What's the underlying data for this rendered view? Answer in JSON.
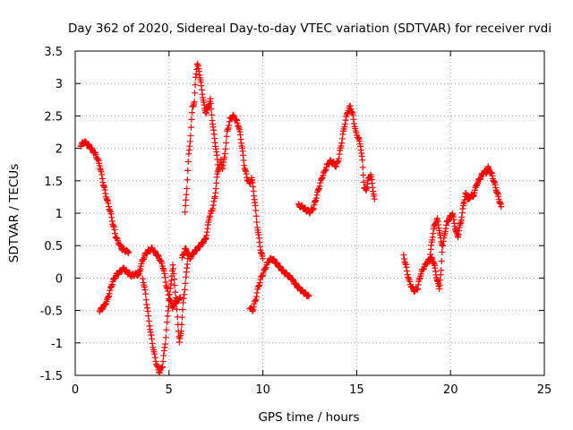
{
  "chart_data": {
    "type": "scatter",
    "title": "Day 362 of 2020, Sidereal Day-to-day VTEC variation (SDTVAR) for receiver rvdi",
    "xlabel": "GPS time / hours",
    "ylabel": "SDTVAR / TECUs",
    "xlim": [
      0,
      25
    ],
    "ylim": [
      -1.5,
      3.5
    ],
    "x_ticks": [
      "0",
      "5",
      "10",
      "15",
      "20",
      "25"
    ],
    "y_ticks": [
      "-1.5",
      "-1",
      "-0.5",
      "0",
      "0.5",
      "1",
      "1.5",
      "2",
      "2.5",
      "3",
      "3.5"
    ],
    "grid": true,
    "marker": "plus",
    "colors": {
      "series": "#ff0000",
      "grid": "#a0a0a0",
      "axis": "#000000"
    },
    "series": [
      {
        "points": [
          [
            0.3,
            2.05
          ],
          [
            0.5,
            2.1
          ],
          [
            0.7,
            2.05
          ],
          [
            0.9,
            1.98
          ],
          [
            1.1,
            1.9
          ],
          [
            1.3,
            1.75
          ],
          [
            1.5,
            1.45
          ],
          [
            1.7,
            1.2
          ],
          [
            1.85,
            1.05
          ],
          [
            2.0,
            0.85
          ],
          [
            2.15,
            0.65
          ],
          [
            2.3,
            0.55
          ],
          [
            2.5,
            0.45
          ],
          [
            2.7,
            0.42
          ],
          [
            2.85,
            0.4
          ]
        ]
      },
      {
        "points": [
          [
            1.3,
            -0.5
          ],
          [
            1.5,
            -0.45
          ],
          [
            1.7,
            -0.35
          ],
          [
            1.85,
            -0.2
          ],
          [
            2.0,
            -0.05
          ],
          [
            2.2,
            0.05
          ],
          [
            2.4,
            0.1
          ],
          [
            2.6,
            0.15
          ],
          [
            2.8,
            0.08
          ],
          [
            3.0,
            0.04
          ],
          [
            3.2,
            0.06
          ],
          [
            3.4,
            0.05
          ],
          [
            3.5,
            0.2
          ],
          [
            3.7,
            0.35
          ],
          [
            3.9,
            0.42
          ],
          [
            4.1,
            0.45
          ],
          [
            4.3,
            0.38
          ],
          [
            4.5,
            0.3
          ],
          [
            4.7,
            0.15
          ],
          [
            4.85,
            -0.1
          ],
          [
            5.0,
            -0.3
          ],
          [
            5.2,
            -0.45
          ],
          [
            5.4,
            -0.35
          ],
          [
            5.6,
            -0.3
          ]
        ]
      },
      {
        "points": [
          [
            3.6,
            0.0
          ],
          [
            3.75,
            -0.25
          ],
          [
            3.9,
            -0.6
          ],
          [
            4.05,
            -0.9
          ],
          [
            4.2,
            -1.15
          ],
          [
            4.35,
            -1.35
          ],
          [
            4.5,
            -1.45
          ],
          [
            4.65,
            -1.35
          ],
          [
            4.8,
            -1.0
          ],
          [
            4.95,
            -0.5
          ],
          [
            5.1,
            -0.1
          ],
          [
            5.2,
            0.2
          ],
          [
            5.3,
            -0.1
          ],
          [
            5.45,
            -0.6
          ],
          [
            5.55,
            -1.0
          ],
          [
            5.65,
            -0.8
          ],
          [
            5.75,
            -0.4
          ],
          [
            5.9,
            0.0
          ],
          [
            6.0,
            0.3
          ]
        ]
      },
      {
        "points": [
          [
            5.7,
            0.3
          ],
          [
            5.85,
            0.45
          ],
          [
            6.0,
            0.4
          ],
          [
            6.1,
            0.3
          ],
          [
            6.2,
            0.35
          ],
          [
            6.35,
            0.4
          ],
          [
            6.5,
            0.45
          ],
          [
            6.65,
            0.5
          ],
          [
            6.8,
            0.55
          ],
          [
            6.95,
            0.6
          ],
          [
            7.05,
            0.75
          ],
          [
            7.15,
            0.95
          ],
          [
            7.3,
            1.05
          ],
          [
            7.45,
            1.25
          ],
          [
            7.55,
            1.55
          ],
          [
            7.65,
            1.7
          ],
          [
            7.75,
            1.8
          ],
          [
            7.85,
            1.7
          ],
          [
            7.95,
            1.85
          ],
          [
            8.1,
            2.25
          ],
          [
            8.25,
            2.45
          ],
          [
            8.4,
            2.5
          ],
          [
            8.55,
            2.45
          ],
          [
            8.7,
            2.35
          ],
          [
            8.8,
            2.2
          ],
          [
            8.9,
            2.0
          ],
          [
            9.0,
            1.75
          ],
          [
            9.15,
            1.55
          ],
          [
            9.3,
            1.45
          ],
          [
            9.4,
            1.55
          ],
          [
            9.5,
            1.35
          ],
          [
            9.6,
            1.1
          ],
          [
            9.7,
            0.8
          ],
          [
            9.8,
            0.6
          ],
          [
            9.9,
            0.4
          ],
          [
            10.0,
            0.3
          ]
        ]
      },
      {
        "points": [
          [
            5.85,
            1.0
          ],
          [
            5.95,
            1.4
          ],
          [
            6.05,
            1.9
          ],
          [
            6.15,
            2.2
          ],
          [
            6.25,
            2.65
          ],
          [
            6.35,
            2.7
          ],
          [
            6.42,
            3.1
          ],
          [
            6.5,
            3.3
          ],
          [
            6.6,
            3.2
          ],
          [
            6.7,
            3.0
          ],
          [
            6.8,
            2.8
          ],
          [
            6.9,
            2.6
          ],
          [
            7.0,
            2.55
          ],
          [
            7.1,
            2.65
          ],
          [
            7.2,
            2.75
          ],
          [
            7.3,
            2.45
          ],
          [
            7.4,
            2.2
          ],
          [
            7.5,
            2.0
          ],
          [
            7.6,
            1.75
          ]
        ]
      },
      {
        "points": [
          [
            9.3,
            -0.45
          ],
          [
            9.45,
            -0.5
          ],
          [
            9.6,
            -0.35
          ],
          [
            9.75,
            -0.15
          ],
          [
            9.9,
            0.0
          ],
          [
            10.05,
            0.1
          ],
          [
            10.2,
            0.2
          ],
          [
            10.35,
            0.28
          ],
          [
            10.5,
            0.3
          ],
          [
            10.65,
            0.25
          ],
          [
            10.8,
            0.2
          ],
          [
            10.95,
            0.15
          ],
          [
            11.1,
            0.1
          ],
          [
            11.3,
            0.05
          ],
          [
            11.5,
            0.0
          ],
          [
            11.7,
            -0.08
          ],
          [
            11.9,
            -0.15
          ],
          [
            12.1,
            -0.2
          ],
          [
            12.3,
            -0.25
          ],
          [
            12.45,
            -0.28
          ]
        ]
      },
      {
        "points": [
          [
            11.9,
            1.12
          ],
          [
            12.1,
            1.1
          ],
          [
            12.3,
            1.05
          ],
          [
            12.5,
            1.02
          ],
          [
            12.7,
            1.08
          ],
          [
            12.85,
            1.25
          ],
          [
            13.0,
            1.4
          ],
          [
            13.15,
            1.55
          ],
          [
            13.3,
            1.65
          ],
          [
            13.45,
            1.75
          ],
          [
            13.6,
            1.8
          ],
          [
            13.75,
            1.78
          ],
          [
            13.9,
            1.72
          ],
          [
            14.05,
            1.85
          ],
          [
            14.2,
            2.1
          ],
          [
            14.35,
            2.35
          ],
          [
            14.5,
            2.55
          ],
          [
            14.65,
            2.65
          ],
          [
            14.8,
            2.5
          ],
          [
            14.95,
            2.25
          ],
          [
            15.1,
            2.15
          ],
          [
            15.2,
            2.05
          ],
          [
            15.3,
            1.8
          ],
          [
            15.4,
            1.4
          ],
          [
            15.5,
            1.35
          ],
          [
            15.6,
            1.5
          ],
          [
            15.75,
            1.6
          ],
          [
            15.85,
            1.4
          ],
          [
            15.95,
            1.22
          ]
        ]
      },
      {
        "points": [
          [
            17.5,
            0.35
          ],
          [
            17.65,
            0.15
          ],
          [
            17.8,
            -0.05
          ],
          [
            17.95,
            -0.15
          ],
          [
            18.1,
            -0.2
          ],
          [
            18.25,
            -0.15
          ],
          [
            18.4,
            0.05
          ],
          [
            18.55,
            0.15
          ],
          [
            18.7,
            0.22
          ],
          [
            18.85,
            0.28
          ],
          [
            19.0,
            0.3
          ],
          [
            19.1,
            0.25
          ],
          [
            19.2,
            0.1
          ],
          [
            19.3,
            -0.05
          ],
          [
            19.4,
            -0.15
          ],
          [
            19.5,
            0.1
          ],
          [
            19.55,
            0.4
          ]
        ]
      },
      {
        "points": [
          [
            18.9,
            0.3
          ],
          [
            19.0,
            0.55
          ],
          [
            19.1,
            0.75
          ],
          [
            19.2,
            0.85
          ],
          [
            19.3,
            0.9
          ],
          [
            19.4,
            0.75
          ],
          [
            19.5,
            0.55
          ],
          [
            19.6,
            0.5
          ],
          [
            19.7,
            0.7
          ],
          [
            19.8,
            0.85
          ],
          [
            19.9,
            0.9
          ],
          [
            20.0,
            0.95
          ],
          [
            20.1,
            1.0
          ],
          [
            20.2,
            0.85
          ],
          [
            20.3,
            0.7
          ],
          [
            20.4,
            0.65
          ],
          [
            20.5,
            0.8
          ],
          [
            20.6,
            0.95
          ],
          [
            20.7,
            1.15
          ],
          [
            20.8,
            1.3
          ],
          [
            20.9,
            1.25
          ],
          [
            21.0,
            1.2
          ],
          [
            21.1,
            1.3
          ],
          [
            21.2,
            1.25
          ],
          [
            21.3,
            1.35
          ],
          [
            21.4,
            1.45
          ],
          [
            21.5,
            1.5
          ],
          [
            21.6,
            1.55
          ],
          [
            21.7,
            1.6
          ],
          [
            21.8,
            1.65
          ],
          [
            21.9,
            1.62
          ],
          [
            22.0,
            1.7
          ],
          [
            22.1,
            1.65
          ],
          [
            22.2,
            1.6
          ],
          [
            22.3,
            1.5
          ],
          [
            22.4,
            1.4
          ],
          [
            22.5,
            1.3
          ],
          [
            22.6,
            1.2
          ],
          [
            22.7,
            1.1
          ]
        ]
      }
    ]
  }
}
